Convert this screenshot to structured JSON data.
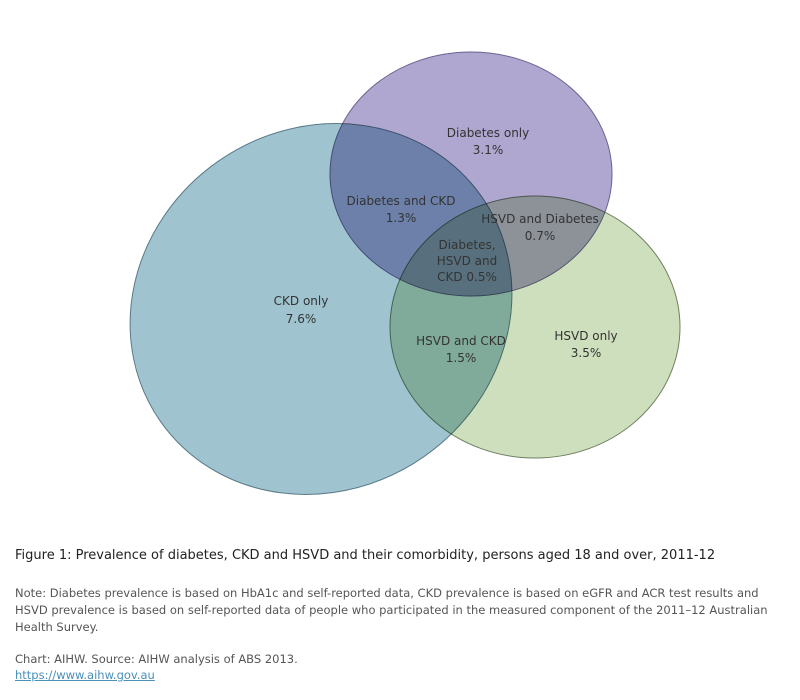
{
  "diagram": {
    "type": "venn",
    "sets": [
      {
        "name": "CKD",
        "color": "#9fc4d0"
      },
      {
        "name": "Diabetes",
        "color": "#aba2cc"
      },
      {
        "name": "HSVD",
        "color": "#c5d9b1"
      }
    ],
    "regions": {
      "ckd_only": {
        "label": "CKD only",
        "value": "7.6%"
      },
      "diabetes_only": {
        "label": "Diabetes only",
        "value": "3.1%"
      },
      "hsvd_only": {
        "label": "HSVD only",
        "value": "3.5%"
      },
      "diabetes_ckd": {
        "label": "Diabetes and CKD",
        "value": "1.3%"
      },
      "hsvd_diabetes": {
        "label": "HSVD and Diabetes",
        "value": "0.7%"
      },
      "hsvd_ckd": {
        "label": "HSVD and CKD",
        "value": "1.5%"
      },
      "all_three": {
        "line1": "Diabetes,",
        "line2": "HSVD and",
        "line3": "CKD 0.5%"
      }
    }
  },
  "caption": {
    "title": "Figure 1: Prevalence of diabetes, CKD and HSVD and their comorbidity, persons aged 18 and over, 2011-12",
    "note": "Note: Diabetes prevalence is based on HbA1c and self-reported data, CKD prevalence is based on eGFR and ACR test results and HSVD prevalence is based on self-reported data of people who participated in the measured component of the 2011–12 Australian Health Survey.",
    "source": "Chart: AIHW.  Source: AIHW analysis of ABS 2013.",
    "link": "https://www.aihw.gov.au"
  }
}
